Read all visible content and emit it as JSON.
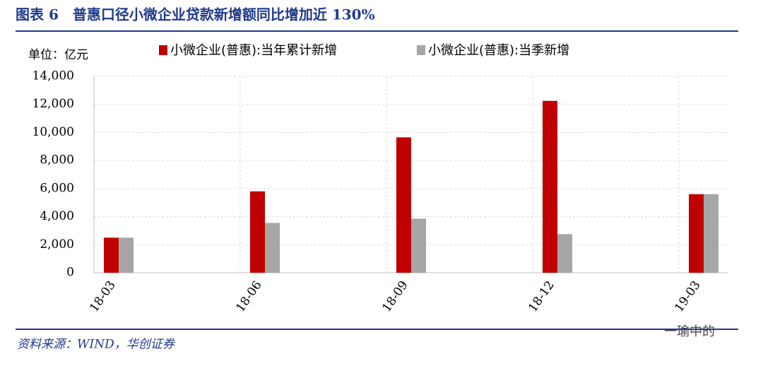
{
  "chart_data": {
    "type": "bar",
    "title": "图表 6　普惠口径小微企业贷款新增额同比增加近 130%",
    "y_unit_label": "单位：亿元",
    "categories": [
      "18-03",
      "18-06",
      "18-09",
      "18-12",
      "19-03"
    ],
    "series": [
      {
        "name": "小微企业(普惠):当年累计新增",
        "color": "#c00000",
        "values": [
          2500,
          5800,
          9650,
          12250,
          5600
        ]
      },
      {
        "name": "小微企业(普惠):当季新增",
        "color": "#a6a6a6",
        "values": [
          2500,
          3550,
          3850,
          2750,
          5600
        ]
      }
    ],
    "ylim": [
      0,
      14000
    ],
    "yticks": [
      0,
      {
        "value": 2000,
        "label": "2,000"
      },
      {
        "value": 4000,
        "label": "4,000"
      },
      {
        "value": 6000,
        "label": "6,000"
      },
      {
        "value": 8000,
        "label": "8,000"
      },
      {
        "value": 10000,
        "label": "10,000"
      },
      {
        "value": 12000,
        "label": "12,000"
      },
      {
        "value": 14000,
        "label": "14,000"
      }
    ],
    "grid": true,
    "source": "资料来源：WIND，华创证券",
    "watermark": "一瑜中的"
  }
}
